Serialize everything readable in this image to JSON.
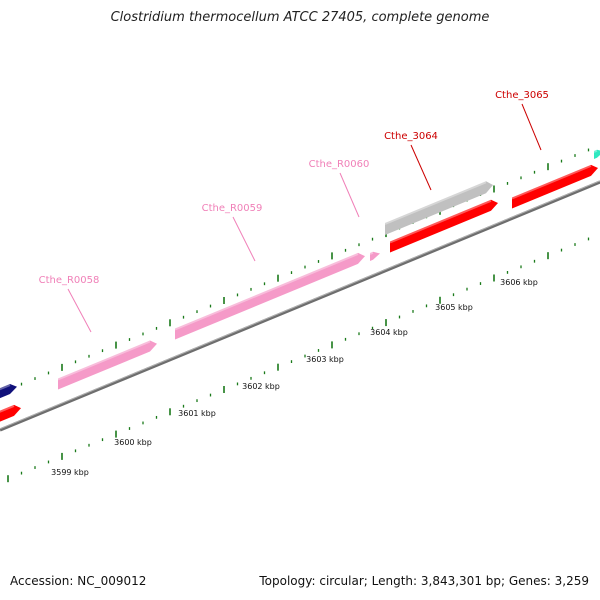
{
  "title": "Clostridium thermocellum ATCC 27405, complete genome",
  "footer": {
    "accession": "Accession: NC_009012",
    "summary": "Topology: circular; Length: 3,843,301 bp; Genes: 3,259"
  },
  "colors": {
    "protein_gene": "#ff0000",
    "rna_gene": "#f59ac8",
    "pseudo_gene": "#c0c0c0",
    "dark_gene": "#10107a",
    "teal_gene": "#2fe8c0",
    "backbone": "#8a8a8a",
    "tick": "#1a7a1a",
    "label_red": "#cc0000",
    "label_pink": "#f080b8"
  },
  "scale_labels": [
    "3599 kbp",
    "3600 kbp",
    "3601 kbp",
    "3602 kbp",
    "3603 kbp",
    "3604 kbp",
    "3605 kbp",
    "3606 kbp"
  ],
  "genes": [
    {
      "id": "dark-left",
      "label": "",
      "type": "dark"
    },
    {
      "id": "red-left",
      "label": "",
      "type": "protein"
    },
    {
      "id": "rna-0058",
      "label": "Cthe_R0058",
      "type": "rna"
    },
    {
      "id": "rna-0059",
      "label": "Cthe_R0059",
      "type": "rna"
    },
    {
      "id": "rna-0060",
      "label": "Cthe_R0060",
      "type": "rna"
    },
    {
      "id": "pseudo-3064",
      "label": "",
      "type": "pseudo"
    },
    {
      "id": "cds-3064",
      "label": "Cthe_3064",
      "type": "protein"
    },
    {
      "id": "cds-3065",
      "label": "Cthe_3065",
      "type": "protein"
    },
    {
      "id": "teal-right",
      "label": "",
      "type": "teal"
    }
  ]
}
